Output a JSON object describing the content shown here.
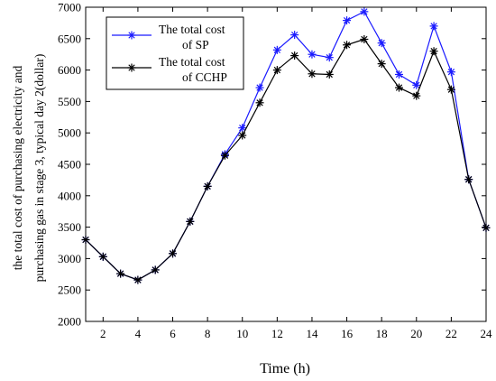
{
  "chart_data": {
    "type": "line",
    "x": [
      1,
      2,
      3,
      4,
      5,
      6,
      7,
      8,
      9,
      10,
      11,
      12,
      13,
      14,
      15,
      16,
      17,
      18,
      19,
      20,
      21,
      22,
      23,
      24
    ],
    "series": [
      {
        "name": "The total cost of SP",
        "name_lines": [
          "The total cost",
          "of SP"
        ],
        "color": "#1a1aff",
        "values": [
          3300,
          3030,
          2760,
          2660,
          2820,
          3080,
          3590,
          4150,
          4660,
          5080,
          5720,
          6320,
          6560,
          6250,
          6200,
          6790,
          6930,
          6430,
          5930,
          5760,
          6700,
          5970,
          4260,
          3490
        ]
      },
      {
        "name": "The total cost of CCHP",
        "name_lines": [
          "The total cost",
          "of CCHP"
        ],
        "color": "#000000",
        "values": [
          3300,
          3030,
          2760,
          2660,
          2820,
          3080,
          3590,
          4150,
          4640,
          4960,
          5480,
          6000,
          6230,
          5940,
          5930,
          6400,
          6490,
          6100,
          5720,
          5590,
          6300,
          5690,
          4260,
          3490
        ]
      }
    ],
    "xlabel": "Time (h)",
    "ylabel_lines": [
      "the total cost  of purchasing electricity and",
      "purchasing gas  in stage 3, typical day 2(dollar)"
    ],
    "xlim": [
      1,
      24
    ],
    "ylim": [
      2000,
      7000
    ],
    "xticks": [
      2,
      4,
      6,
      8,
      10,
      12,
      14,
      16,
      18,
      20,
      22,
      24
    ],
    "yticks": [
      2000,
      2500,
      3000,
      3500,
      4000,
      4500,
      5000,
      5500,
      6000,
      6500,
      7000
    ],
    "grid": false,
    "legend_position": "top-left",
    "marker": "asterisk"
  }
}
